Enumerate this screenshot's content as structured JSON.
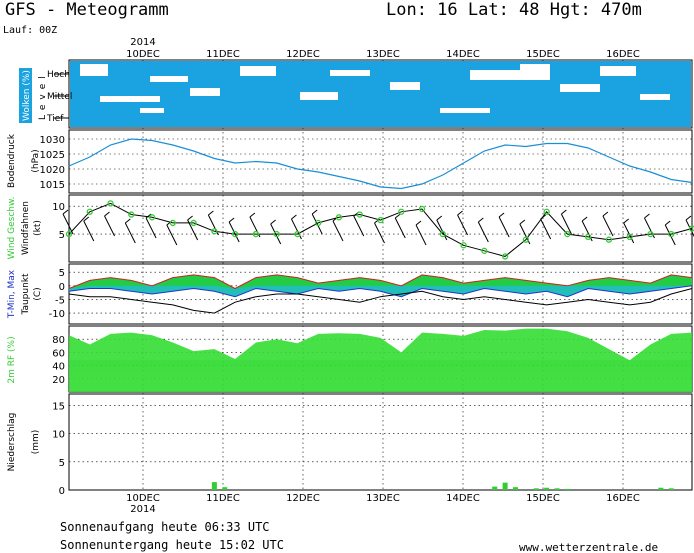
{
  "header": {
    "title": "GFS - Meteogramm",
    "location": "Lon: 16 Lat: 48 Hgt: 470m",
    "run": "Lauf: 00Z",
    "year_top": "2014",
    "year_bottom": "2014"
  },
  "footer": {
    "sunrise": "Sonnenaufgang heute 06:33 UTC",
    "sunset": "Sonnenuntergang heute 15:02 UTC",
    "website": "www.wetterzentrale.de"
  },
  "colors": {
    "cloud": "#1aa3e0",
    "pressure": "#1a8fd6",
    "wind_marker": "#33cc33",
    "rh": "#33dd33",
    "precip": "#33cc33"
  },
  "chart_data": [
    {
      "type": "heatmap",
      "panel": "clouds",
      "ylabel_box": "Wolken (%)",
      "ylabel": "Level",
      "rows": [
        "Hoch",
        "Mittel",
        "Tief"
      ],
      "x_ticks": [
        "10DEC",
        "11DEC",
        "12DEC",
        "13DEC",
        "14DEC",
        "15DEC",
        "16DEC"
      ],
      "time_range_hours": [
        0,
        180
      ],
      "note": "mostly overcast with scattered clear gaps"
    },
    {
      "type": "line",
      "panel": "pressure",
      "ylabel": "Bodendruck",
      "unit": "(hPa)",
      "yticks": [
        1015,
        1020,
        1025,
        1030
      ],
      "ylim": [
        1012,
        1033
      ],
      "x_hours": [
        0,
        6,
        12,
        18,
        24,
        30,
        36,
        42,
        48,
        54,
        60,
        66,
        72,
        78,
        84,
        90,
        96,
        102,
        108,
        114,
        120,
        126,
        132,
        138,
        144,
        150,
        156,
        162,
        168,
        174,
        180
      ],
      "values": [
        1021,
        1024,
        1028,
        1030,
        1029.5,
        1028,
        1026,
        1023.5,
        1022,
        1022.5,
        1022,
        1020,
        1019,
        1017.5,
        1016,
        1014,
        1013.5,
        1015,
        1018,
        1022,
        1026,
        1028,
        1027.5,
        1028.5,
        1028.5,
        1027,
        1024,
        1021,
        1019,
        1016.5,
        1015.5
      ]
    },
    {
      "type": "line",
      "panel": "wind",
      "ylabel": "Wind Geschw.",
      "ylabel2": "Windfahnen",
      "unit": "(kt)",
      "yticks": [
        5,
        10
      ],
      "ylim": [
        0,
        12
      ],
      "x_hours": [
        0,
        6,
        12,
        18,
        24,
        30,
        36,
        42,
        48,
        54,
        60,
        66,
        72,
        78,
        84,
        90,
        96,
        102,
        108,
        114,
        120,
        126,
        132,
        138,
        144,
        150,
        156,
        162,
        168,
        174,
        180
      ],
      "values": [
        5,
        9,
        10.5,
        8.5,
        8,
        7,
        7,
        5.5,
        5,
        5,
        5,
        5,
        7,
        8,
        8.5,
        7.5,
        9,
        9.5,
        5,
        3,
        2,
        1,
        4,
        9,
        5,
        4.5,
        4,
        4.5,
        5,
        5,
        6
      ]
    },
    {
      "type": "area",
      "panel": "temperature",
      "ylabel": "T-Min, Max",
      "ylabel2": "Taupunkt",
      "unit": "(C)",
      "yticks": [
        5,
        0,
        -5,
        -10
      ],
      "ylim": [
        -14,
        8
      ],
      "series": [
        {
          "name": "T-Max",
          "values": [
            -1,
            2,
            3,
            2,
            0,
            3,
            4,
            3,
            -1,
            3,
            4,
            3,
            1,
            2,
            3,
            2,
            0,
            4,
            3,
            1,
            2,
            3,
            2,
            1,
            0,
            2,
            3,
            2,
            1,
            4,
            3
          ]
        },
        {
          "name": "T-Min",
          "values": [
            -2,
            -1,
            -1,
            -2,
            -3,
            -2,
            -1,
            -2,
            -4,
            -1,
            -2,
            -3,
            -1,
            -2,
            -1,
            -2,
            -4,
            -1,
            -2,
            -3,
            -1,
            -2,
            -3,
            -2,
            -4,
            -1,
            -2,
            -3,
            -2,
            -1,
            0
          ]
        },
        {
          "name": "Taupunkt",
          "values": [
            -3,
            -4,
            -4,
            -5,
            -6,
            -7,
            -9,
            -10,
            -6,
            -4,
            -3,
            -3,
            -4,
            -5,
            -6,
            -4,
            -3,
            -2,
            -4,
            -5,
            -4,
            -5,
            -6,
            -7,
            -6,
            -5,
            -6,
            -7,
            -6,
            -3,
            -1
          ]
        }
      ],
      "x_hours": [
        0,
        6,
        12,
        18,
        24,
        30,
        36,
        42,
        48,
        54,
        60,
        66,
        72,
        78,
        84,
        90,
        96,
        102,
        108,
        114,
        120,
        126,
        132,
        138,
        144,
        150,
        156,
        162,
        168,
        174,
        180
      ]
    },
    {
      "type": "area",
      "panel": "humidity",
      "ylabel": "2m RF (%)",
      "yticks": [
        20,
        40,
        60,
        80
      ],
      "ylim": [
        0,
        100
      ],
      "x_hours": [
        0,
        6,
        12,
        18,
        24,
        30,
        36,
        42,
        48,
        54,
        60,
        66,
        72,
        78,
        84,
        90,
        96,
        102,
        108,
        114,
        120,
        126,
        132,
        138,
        144,
        150,
        156,
        162,
        168,
        174,
        180
      ],
      "values": [
        86,
        72,
        88,
        90,
        86,
        75,
        62,
        65,
        50,
        75,
        80,
        74,
        88,
        89,
        88,
        82,
        60,
        90,
        88,
        85,
        94,
        93,
        96,
        96,
        92,
        82,
        65,
        48,
        72,
        88,
        90
      ]
    },
    {
      "type": "bar",
      "panel": "precipitation",
      "ylabel": "Niederschlag",
      "unit": "(mm)",
      "yticks": [
        0,
        5,
        10,
        15
      ],
      "ylim": [
        0,
        17
      ],
      "x_hours": [
        42,
        45,
        123,
        126,
        129,
        135,
        138,
        141,
        144,
        171,
        174
      ],
      "values": [
        1.4,
        0.5,
        0.6,
        1.3,
        0.5,
        0.3,
        0.4,
        0.3,
        0.2,
        0.4,
        0.3
      ]
    }
  ]
}
